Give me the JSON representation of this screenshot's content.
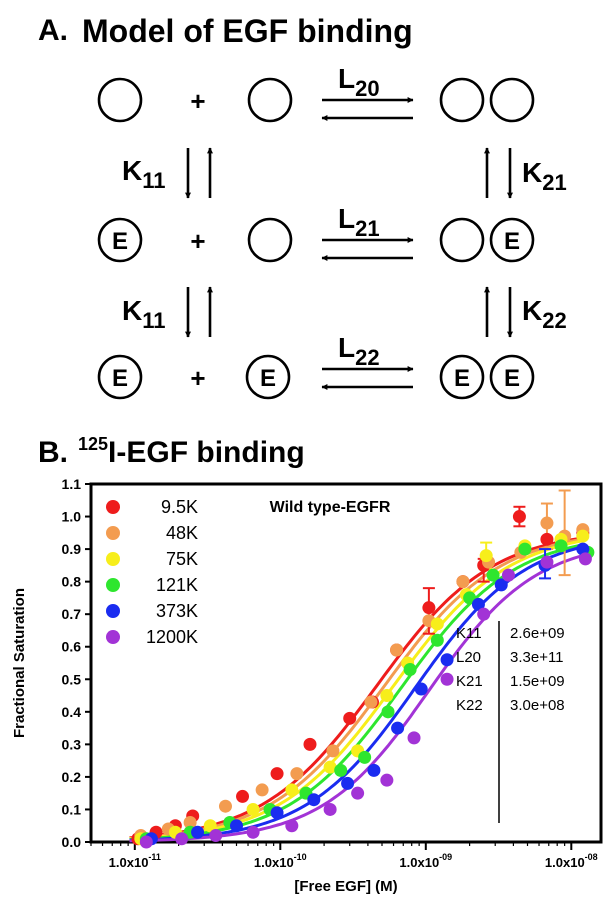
{
  "panel_a": {
    "letter": "A.",
    "title": "Model of EGF binding",
    "node_label": "E",
    "plus": "+",
    "rate_L20": {
      "base": "L",
      "sub": "20"
    },
    "rate_L21": {
      "base": "L",
      "sub": "21"
    },
    "rate_L22": {
      "base": "L",
      "sub": "22"
    },
    "rate_K11a": {
      "base": "K",
      "sub": "11"
    },
    "rate_K11b": {
      "base": "K",
      "sub": "11"
    },
    "rate_K21": {
      "base": "K",
      "sub": "21"
    },
    "rate_K22": {
      "base": "K",
      "sub": "22"
    }
  },
  "panel_b": {
    "letter": "B.",
    "title_sup": "125",
    "title_main": "I-EGF binding",
    "annotation": "Wild type-EGFR",
    "xlabel": "[Free EGF] (M)",
    "ylabel": "Fractional Saturation",
    "param_table": [
      {
        "name": "K11",
        "value": "2.6e+09"
      },
      {
        "name": "L20",
        "value": "3.3e+11"
      },
      {
        "name": "K21",
        "value": "1.5e+09"
      },
      {
        "name": "K22",
        "value": "3.0e+08"
      }
    ]
  },
  "chart_data": {
    "type": "scatter",
    "title": "125I-EGF binding",
    "xlabel": "[Free EGF] (M)",
    "ylabel": "Fractional Saturation",
    "x_scale": "log",
    "xlim": [
      5e-12,
      1.6e-08
    ],
    "ylim": [
      0,
      1.1
    ],
    "x_ticks": [
      {
        "value": 1e-11,
        "mant": "1.0x10",
        "exp": "-11"
      },
      {
        "value": 1e-10,
        "mant": "1.0x10",
        "exp": "-10"
      },
      {
        "value": 1e-09,
        "mant": "1.0x10",
        "exp": "-09"
      },
      {
        "value": 1e-08,
        "mant": "1.0x10",
        "exp": "-08"
      }
    ],
    "y_ticks": [
      "0.0",
      "0.1",
      "0.2",
      "0.3",
      "0.4",
      "0.5",
      "0.6",
      "0.7",
      "0.8",
      "0.9",
      "1.0",
      "1.1"
    ],
    "legend_position": "top-left",
    "grid": false,
    "series": [
      {
        "name": "9.5K",
        "color": "#ee1c1c",
        "ec50": 4.6e-10,
        "hill": 1.1,
        "max": 0.96,
        "x": [
          1.05e-11,
          1.4e-11,
          1.9e-11,
          2.5e-11,
          5.5e-11,
          9.5e-11,
          1.6e-10,
          3e-10,
          4.3e-10,
          6.3e-10,
          1.05e-09,
          1.8e-09,
          2.5e-09,
          4.4e-09,
          6.8e-09,
          1.2e-08
        ],
        "y": [
          0.01,
          0.03,
          0.05,
          0.08,
          0.14,
          0.21,
          0.3,
          0.38,
          0.43,
          0.59,
          0.72,
          0.8,
          0.85,
          1.0,
          0.93,
          0.95
        ]
      },
      {
        "name": "48K",
        "color": "#f39c50",
        "ec50": 5.2e-10,
        "hill": 1.1,
        "max": 0.96,
        "x": [
          1.1e-11,
          1.7e-11,
          2.4e-11,
          4.2e-11,
          7.5e-11,
          1.3e-10,
          2.3e-10,
          4.2e-10,
          6.3e-10,
          1.05e-09,
          1.8e-09,
          2.7e-09,
          4.5e-09,
          6.8e-09,
          9e-09,
          1.2e-08
        ],
        "y": [
          0.02,
          0.04,
          0.06,
          0.11,
          0.16,
          0.21,
          0.28,
          0.43,
          0.59,
          0.68,
          0.8,
          0.86,
          0.89,
          0.98,
          0.94,
          0.96
        ]
      },
      {
        "name": "75K",
        "color": "#f7ee1b",
        "ec50": 6e-10,
        "hill": 1.1,
        "max": 0.96,
        "x": [
          1.1e-11,
          1.9e-11,
          3.3e-11,
          6.5e-11,
          1.2e-10,
          2.2e-10,
          3.4e-10,
          5.4e-10,
          7.5e-10,
          1.2e-09,
          1.9e-09,
          2.6e-09,
          4.8e-09,
          8.5e-09,
          1.2e-08
        ],
        "y": [
          0.01,
          0.03,
          0.05,
          0.1,
          0.16,
          0.23,
          0.28,
          0.45,
          0.55,
          0.67,
          0.76,
          0.88,
          0.91,
          0.93,
          0.94
        ]
      },
      {
        "name": "121K",
        "color": "#2ee62e",
        "ec50": 6.8e-10,
        "hill": 1.12,
        "max": 0.95,
        "x": [
          1.2e-11,
          2.4e-11,
          4.5e-11,
          8.5e-11,
          1.5e-10,
          2.6e-10,
          3.8e-10,
          5.5e-10,
          7.8e-10,
          1.2e-09,
          2e-09,
          2.9e-09,
          4.8e-09,
          8.5e-09,
          1.3e-08
        ],
        "y": [
          0.01,
          0.03,
          0.06,
          0.1,
          0.15,
          0.22,
          0.26,
          0.4,
          0.53,
          0.62,
          0.75,
          0.82,
          0.9,
          0.91,
          0.89
        ]
      },
      {
        "name": "373K",
        "color": "#1a2cf0",
        "ec50": 8.5e-10,
        "hill": 1.15,
        "max": 0.95,
        "x": [
          1.3e-11,
          2.7e-11,
          5e-11,
          9.5e-11,
          1.7e-10,
          2.9e-10,
          4.4e-10,
          6.4e-10,
          9.3e-10,
          1.4e-09,
          2.3e-09,
          3.3e-09,
          6.6e-09,
          1.2e-08
        ],
        "y": [
          0.01,
          0.03,
          0.05,
          0.09,
          0.13,
          0.18,
          0.22,
          0.35,
          0.47,
          0.56,
          0.73,
          0.79,
          0.85,
          0.9
        ]
      },
      {
        "name": "1200K",
        "color": "#a233d6",
        "ec50": 1.05e-09,
        "hill": 1.18,
        "max": 0.93,
        "x": [
          1.2e-11,
          2.1e-11,
          3.6e-11,
          6.5e-11,
          1.2e-10,
          2.2e-10,
          3.4e-10,
          5.4e-10,
          8.3e-10,
          1.4e-09,
          2.5e-09,
          3.7e-09,
          6.8e-09,
          1.25e-08
        ],
        "y": [
          0.0,
          0.01,
          0.02,
          0.03,
          0.05,
          0.1,
          0.15,
          0.19,
          0.32,
          0.5,
          0.7,
          0.82,
          0.86,
          0.87
        ]
      }
    ]
  }
}
